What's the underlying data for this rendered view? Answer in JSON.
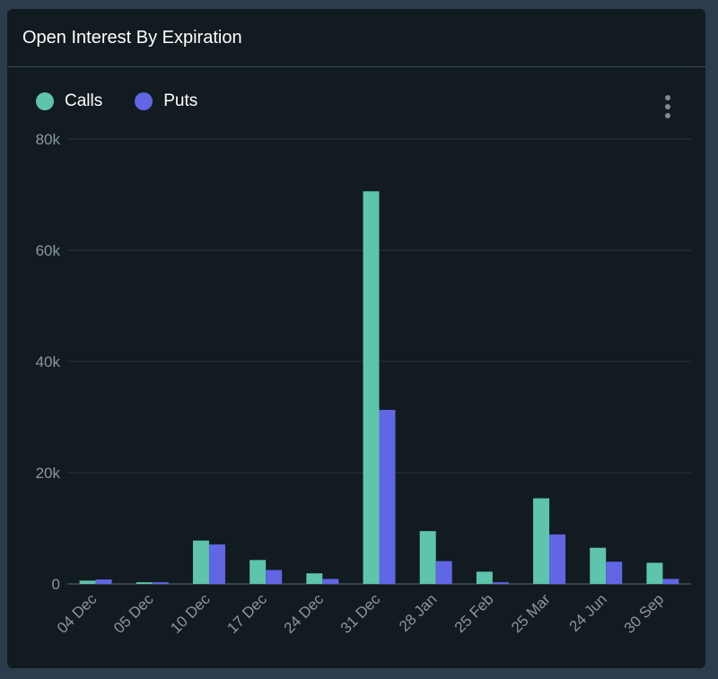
{
  "title": "Open Interest By Expiration",
  "legend": [
    {
      "label": "Calls",
      "color": "#5ec4ab"
    },
    {
      "label": "Puts",
      "color": "#6066e4"
    }
  ],
  "menu_icon": "kebab-menu-icon",
  "chart_data": {
    "type": "bar",
    "title": "Open Interest By Expiration",
    "xlabel": "",
    "ylabel": "",
    "ylim": [
      0,
      80000
    ],
    "yticks": [
      0,
      20000,
      40000,
      60000,
      80000
    ],
    "ytick_labels": [
      "0",
      "20k",
      "40k",
      "60k",
      "80k"
    ],
    "grid": true,
    "legend_position": "top-left",
    "categories": [
      "04 Dec",
      "05 Dec",
      "10 Dec",
      "17 Dec",
      "24 Dec",
      "31 Dec",
      "28 Jan",
      "25 Feb",
      "25 Mar",
      "24 Jun",
      "30 Sep"
    ],
    "series": [
      {
        "name": "Calls",
        "color": "#5ec4ab",
        "values": [
          600,
          300,
          7800,
          4300,
          1900,
          70600,
          9500,
          2200,
          15400,
          6500,
          3800
        ]
      },
      {
        "name": "Puts",
        "color": "#6066e4",
        "values": [
          800,
          300,
          7100,
          2500,
          900,
          31300,
          4100,
          300,
          8900,
          4000,
          900
        ]
      }
    ]
  }
}
